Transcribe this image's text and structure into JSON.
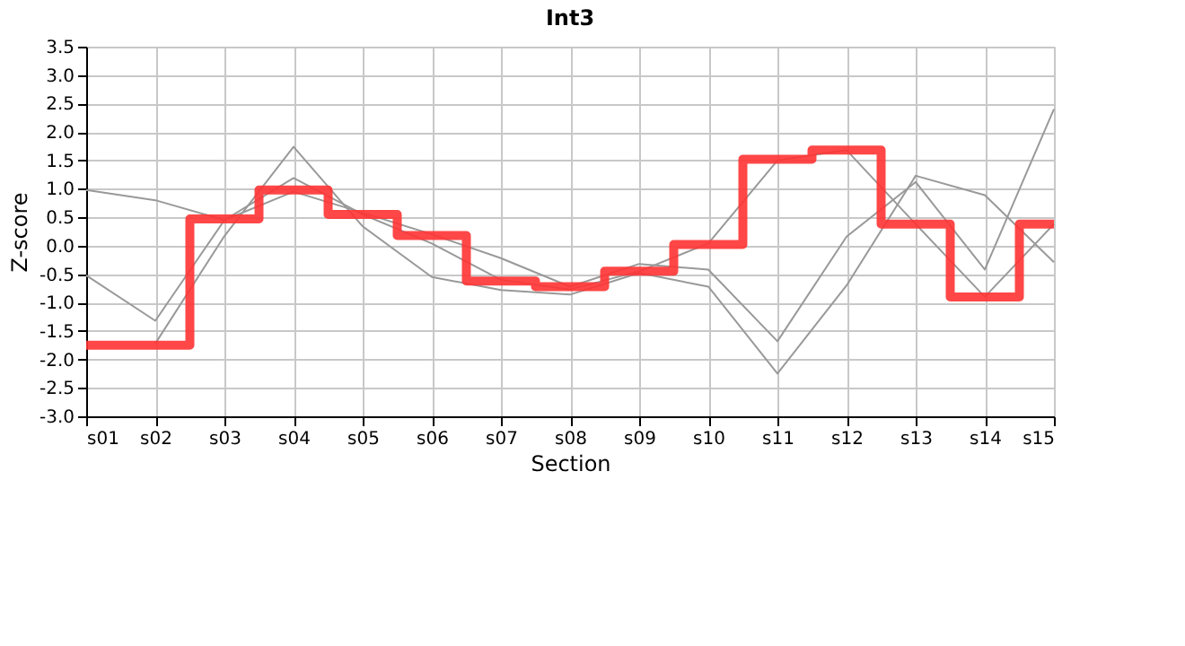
{
  "chart_data": {
    "type": "line",
    "title": "Int3",
    "xlabel": "Section",
    "ylabel": "Z-score",
    "categories": [
      "s01",
      "s02",
      "s03",
      "s04",
      "s05",
      "s06",
      "s07",
      "s08",
      "s09",
      "s10",
      "s11",
      "s12",
      "s13",
      "s14",
      "s15"
    ],
    "ylim": [
      -3.0,
      3.5
    ],
    "yticks": [
      {
        "value": -3,
        "label": "-3.0"
      },
      -2.5,
      {
        "value": -2,
        "label": "-2.0"
      },
      -1.5,
      {
        "value": -1,
        "label": "-1.0"
      },
      -0.5,
      {
        "value": 0,
        "label": "0.0"
      },
      0.5,
      {
        "value": 1,
        "label": "1.0"
      },
      1.5,
      {
        "value": 2,
        "label": "2.0"
      },
      2.5,
      {
        "value": 3,
        "label": "3.0"
      },
      3.5
    ],
    "grid": true,
    "legend": false,
    "series": [
      {
        "type": "line",
        "color": "#999999",
        "values": [
          0.98,
          0.8,
          0.45,
          0.95,
          0.58,
          0.2,
          -0.22,
          -0.72,
          -0.32,
          -0.42,
          -1.68,
          0.16,
          1.12,
          -0.42,
          2.4
        ]
      },
      {
        "type": "line",
        "color": "#999999",
        "values": [
          -0.52,
          -1.32,
          0.45,
          1.19,
          0.55,
          0.04,
          -0.6,
          -0.77,
          -0.45,
          0.04,
          1.5,
          1.68,
          0.38,
          -0.9,
          0.38
        ]
      },
      {
        "type": "line",
        "color": "#999999",
        "values": [
          null,
          -1.72,
          0.17,
          1.74,
          0.34,
          -0.55,
          -0.78,
          -0.86,
          -0.48,
          -0.72,
          -2.25,
          -0.7,
          1.23,
          0.89,
          -0.29
        ]
      },
      {
        "type": "step",
        "color": "#ff3333",
        "values": [
          -1.75,
          -1.75,
          0.47,
          0.98,
          0.55,
          0.18,
          -0.62,
          -0.72,
          -0.45,
          0.02,
          1.52,
          1.68,
          0.38,
          -0.9,
          0.38
        ]
      }
    ]
  }
}
